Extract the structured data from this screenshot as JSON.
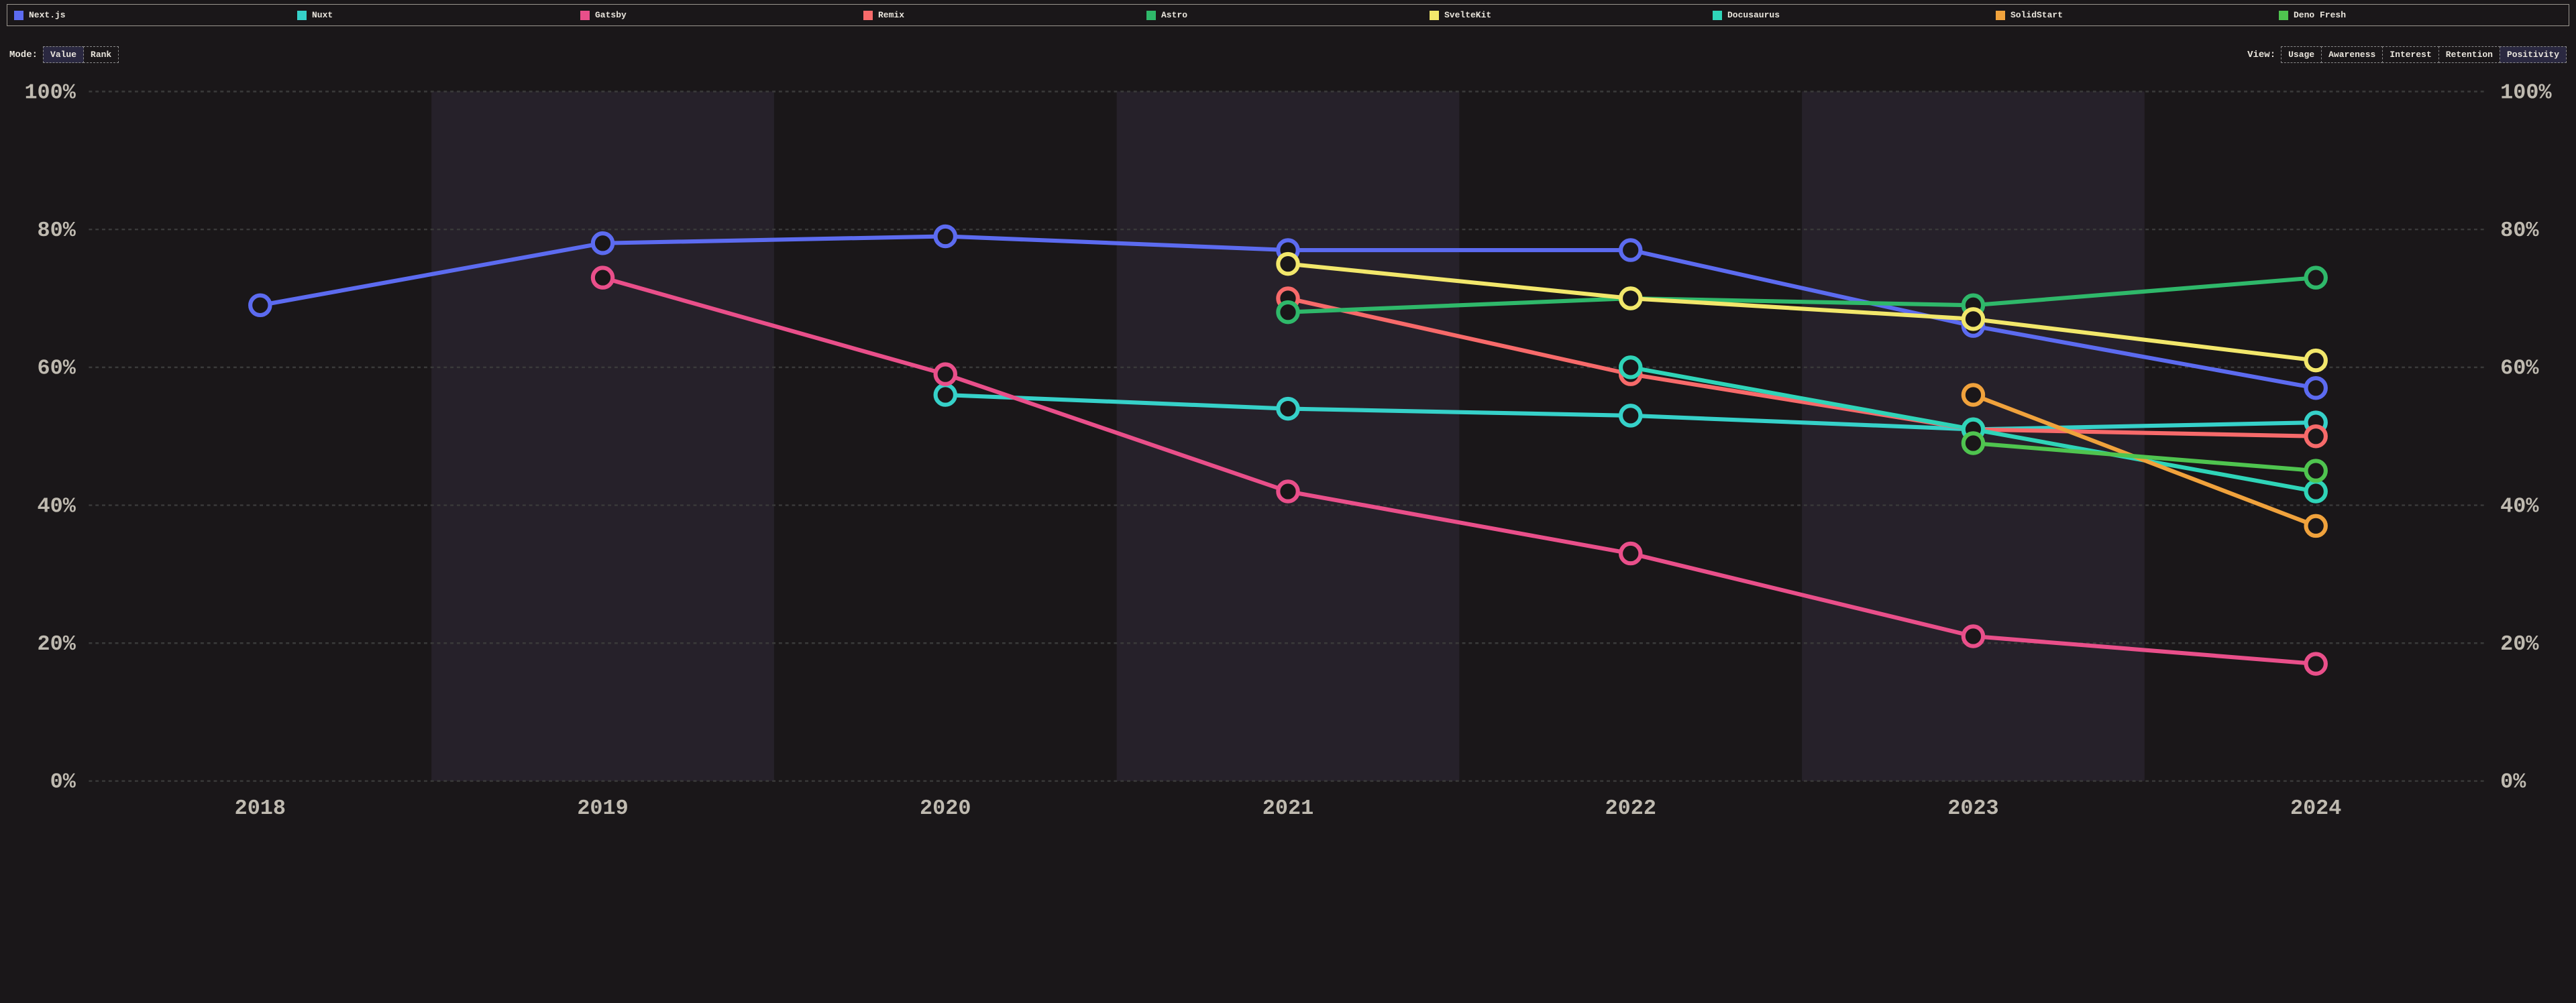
{
  "legend": [
    {
      "label": "Next.js",
      "color": "#5c6bf0"
    },
    {
      "label": "Nuxt",
      "color": "#36d1c9"
    },
    {
      "label": "Gatsby",
      "color": "#e94f8a"
    },
    {
      "label": "Remix",
      "color": "#f76a6a"
    },
    {
      "label": "Astro",
      "color": "#2fb86a"
    },
    {
      "label": "SvelteKit",
      "color": "#f2e76b"
    },
    {
      "label": "Docusaurus",
      "color": "#2fd4b8"
    },
    {
      "label": "SolidStart",
      "color": "#f0a23c"
    },
    {
      "label": "Deno Fresh",
      "color": "#4fc44f"
    }
  ],
  "mode": {
    "label": "Mode:",
    "options": [
      "Value",
      "Rank"
    ],
    "active": "Value"
  },
  "view": {
    "label": "View:",
    "options": [
      "Usage",
      "Awareness",
      "Interest",
      "Retention",
      "Positivity"
    ],
    "active": "Positivity"
  },
  "chart": {
    "type": "line",
    "x_categories": [
      "2018",
      "2019",
      "2020",
      "2021",
      "2022",
      "2023",
      "2024"
    ],
    "y_min": 0,
    "y_max": 100,
    "y_tick_step": 20,
    "y_suffix": "%",
    "background_color": "#1a1719",
    "band_color": "#26212a",
    "grid_color": "#3a3a3a",
    "axis_text_color": "#bfbab0",
    "line_width": 2.5,
    "marker_radius": 6,
    "series": [
      {
        "key": "Next.js",
        "color": "#5c6bf0",
        "points": {
          "2018": 69,
          "2019": 78,
          "2020": 79,
          "2021": 77,
          "2022": 77,
          "2023": 66,
          "2024": 57
        }
      },
      {
        "key": "Nuxt",
        "color": "#36d1c9",
        "points": {
          "2020": 56,
          "2021": 54,
          "2022": 53,
          "2023": 51,
          "2024": 52
        }
      },
      {
        "key": "Gatsby",
        "color": "#e94f8a",
        "points": {
          "2019": 73,
          "2020": 59,
          "2021": 42,
          "2022": 33,
          "2023": 21,
          "2024": 17
        }
      },
      {
        "key": "Remix",
        "color": "#f76a6a",
        "points": {
          "2021": 70,
          "2022": 59,
          "2023": 51,
          "2024": 50
        }
      },
      {
        "key": "Astro",
        "color": "#2fb86a",
        "points": {
          "2021": 68,
          "2022": 70,
          "2023": 69,
          "2024": 73
        }
      },
      {
        "key": "SvelteKit",
        "color": "#f2e76b",
        "points": {
          "2021": 75,
          "2022": 70,
          "2023": 67,
          "2024": 61
        }
      },
      {
        "key": "Docusaurus",
        "color": "#2fd4b8",
        "points": {
          "2022": 60,
          "2023": 51,
          "2024": 42
        }
      },
      {
        "key": "SolidStart",
        "color": "#f0a23c",
        "points": {
          "2023": 56,
          "2024": 37
        }
      },
      {
        "key": "Deno Fresh",
        "color": "#4fc44f",
        "points": {
          "2023": 49,
          "2024": 45
        }
      }
    ]
  }
}
